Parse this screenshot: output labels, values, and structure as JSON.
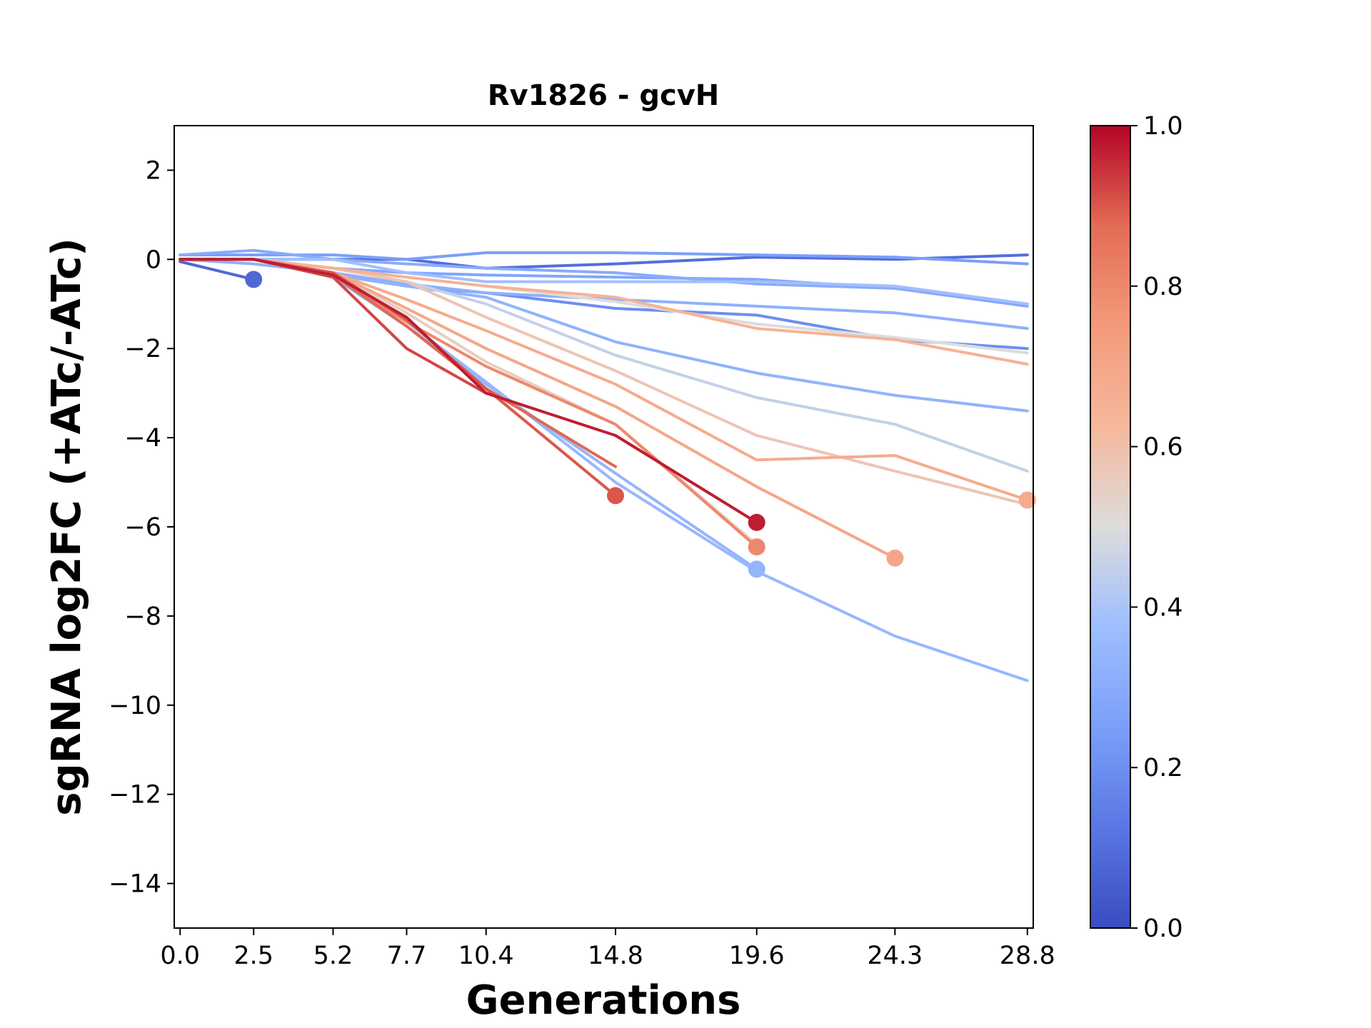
{
  "chart_data": {
    "type": "line",
    "title": "Rv1826 - gcvH",
    "xlabel": "Generations",
    "ylabel": "sgRNA log2FC (+ATc/-ATc)",
    "xlim": [
      -0.2,
      29.0
    ],
    "ylim": [
      -15,
      3
    ],
    "xticks": [
      0.0,
      2.5,
      5.2,
      7.7,
      10.4,
      14.8,
      19.6,
      24.3,
      28.8
    ],
    "xtick_labels": [
      "0.0",
      "2.5",
      "5.2",
      "7.7",
      "10.4",
      "14.8",
      "19.6",
      "24.3",
      "28.8"
    ],
    "yticks": [
      2,
      0,
      -2,
      -4,
      -6,
      -8,
      -10,
      -12,
      -14
    ],
    "ytick_labels": [
      "2",
      "0",
      "−2",
      "−4",
      "−6",
      "−8",
      "−10",
      "−12",
      "−14"
    ],
    "grid": false,
    "colorbar": {
      "colormap": "coolwarm",
      "range": [
        0.0,
        1.0
      ],
      "ticks": [
        0.0,
        0.2,
        0.4,
        0.6,
        0.8,
        1.0
      ],
      "tick_labels": [
        "0.0",
        "0.2",
        "0.4",
        "0.6",
        "0.8",
        "1.0"
      ]
    },
    "series": [
      {
        "color_value": 0.08,
        "x": [
          0.0,
          2.5
        ],
        "y": [
          -0.05,
          -0.45
        ],
        "end_marker": true
      },
      {
        "color_value": 0.1,
        "x": [
          0.0,
          2.5,
          5.2,
          7.7,
          10.4,
          14.8,
          19.6,
          24.3,
          28.8
        ],
        "y": [
          0.0,
          0.0,
          0.0,
          0.0,
          -0.2,
          -0.1,
          0.05,
          0.0,
          0.1
        ],
        "end_marker": false
      },
      {
        "color_value": 0.2,
        "x": [
          0.0,
          2.5,
          5.2,
          7.7,
          10.4,
          14.8,
          19.6,
          24.3,
          28.8
        ],
        "y": [
          0.0,
          0.0,
          -0.3,
          -0.6,
          -0.75,
          -1.1,
          -1.25,
          -1.8,
          -2.0
        ],
        "end_marker": false
      },
      {
        "color_value": 0.25,
        "x": [
          0.0,
          2.5,
          5.2,
          7.7,
          10.4,
          14.8,
          19.6,
          24.3,
          28.8
        ],
        "y": [
          0.1,
          0.1,
          0.1,
          0.0,
          0.15,
          0.15,
          0.1,
          0.05,
          -0.1
        ],
        "end_marker": false
      },
      {
        "color_value": 0.28,
        "x": [
          0.0,
          2.5,
          5.2,
          7.7,
          10.4,
          14.8,
          19.6,
          24.3,
          28.8
        ],
        "y": [
          0.0,
          0.0,
          -0.2,
          -0.3,
          -0.35,
          -0.4,
          -0.45,
          -0.65,
          -1.05
        ],
        "end_marker": false
      },
      {
        "color_value": 0.3,
        "x": [
          0.0,
          2.5,
          5.2,
          7.7,
          10.4,
          14.8,
          19.6,
          24.3,
          28.8
        ],
        "y": [
          0.1,
          0.2,
          0.0,
          -0.1,
          -0.2,
          -0.3,
          -0.55,
          -0.65,
          -1.0
        ],
        "end_marker": false
      },
      {
        "color_value": 0.32,
        "x": [
          0.0,
          2.5,
          5.2,
          7.7,
          10.4,
          14.8,
          19.6,
          24.3,
          28.8
        ],
        "y": [
          0.0,
          -0.1,
          -0.3,
          -0.55,
          -0.75,
          -0.9,
          -1.05,
          -1.2,
          -1.55
        ],
        "end_marker": false
      },
      {
        "color_value": 0.33,
        "x": [
          0.0,
          2.5,
          5.2,
          7.7,
          10.4,
          14.8,
          19.6,
          24.3,
          28.8
        ],
        "y": [
          0.0,
          0.0,
          -0.35,
          -0.6,
          -0.85,
          -1.85,
          -2.55,
          -3.05,
          -3.4
        ],
        "end_marker": false
      },
      {
        "color_value": 0.34,
        "x": [
          0.0,
          2.5,
          5.2,
          7.7,
          10.4,
          14.8,
          19.6
        ],
        "y": [
          0.0,
          0.0,
          -0.4,
          -1.5,
          -2.8,
          -4.8,
          -6.95
        ],
        "end_marker": true
      },
      {
        "color_value": 0.35,
        "x": [
          0.0,
          2.5,
          5.2,
          7.7,
          10.4,
          14.8,
          19.6,
          24.3,
          28.8
        ],
        "y": [
          0.0,
          0.0,
          -0.35,
          -1.4,
          -2.75,
          -5.0,
          -7.0,
          -8.45,
          -9.45
        ],
        "end_marker": false
      },
      {
        "color_value": 0.38,
        "x": [
          0.0,
          2.5,
          5.2,
          7.7,
          10.4,
          14.8,
          19.6,
          24.3,
          28.8
        ],
        "y": [
          0.0,
          0.0,
          0.0,
          -0.3,
          -0.5,
          -0.5,
          -0.5,
          -0.6,
          -1.0
        ],
        "end_marker": false
      },
      {
        "color_value": 0.45,
        "x": [
          0.0,
          2.5,
          5.2,
          7.7,
          10.4,
          14.8,
          19.6,
          24.3,
          28.8
        ],
        "y": [
          0.0,
          0.0,
          -0.2,
          -0.5,
          -1.0,
          -2.15,
          -3.1,
          -3.7,
          -4.75
        ],
        "end_marker": false
      },
      {
        "color_value": 0.5,
        "x": [
          0.0,
          2.5,
          5.2,
          7.7,
          10.4,
          14.8,
          19.6,
          24.3,
          28.8
        ],
        "y": [
          0.0,
          0.0,
          -0.2,
          -0.4,
          -0.6,
          -0.95,
          -1.45,
          -1.75,
          -2.1
        ],
        "end_marker": false
      },
      {
        "color_value": 0.55,
        "x": [
          0.0,
          2.5,
          5.2,
          7.7,
          10.4,
          14.8,
          19.6
        ],
        "y": [
          0.0,
          0.0,
          -0.3,
          -1.2,
          -2.3,
          -3.7,
          -6.4
        ],
        "end_marker": false
      },
      {
        "color_value": 0.58,
        "x": [
          0.0,
          2.5,
          5.2,
          7.7,
          10.4,
          14.8,
          19.6,
          24.3,
          28.8
        ],
        "y": [
          0.0,
          0.0,
          -0.2,
          -0.5,
          -1.3,
          -2.5,
          -3.95,
          -4.75,
          -5.5
        ],
        "end_marker": false
      },
      {
        "color_value": 0.65,
        "x": [
          0.0,
          2.5,
          5.2,
          7.7,
          10.4,
          14.8,
          19.6,
          24.3,
          28.8
        ],
        "y": [
          0.0,
          0.0,
          -0.2,
          -0.4,
          -0.6,
          -0.85,
          -1.55,
          -1.8,
          -2.35
        ],
        "end_marker": false
      },
      {
        "color_value": 0.68,
        "x": [
          0.0,
          2.5,
          5.2,
          7.7,
          10.4,
          14.8,
          19.6,
          24.3,
          28.8
        ],
        "y": [
          0.0,
          0.0,
          -0.3,
          -0.9,
          -1.6,
          -2.8,
          -4.5,
          -4.4,
          -5.4
        ],
        "end_marker": true
      },
      {
        "color_value": 0.7,
        "x": [
          0.0,
          2.5,
          5.2,
          7.7,
          10.4,
          14.8,
          19.6,
          24.3
        ],
        "y": [
          0.0,
          0.0,
          -0.3,
          -1.1,
          -2.0,
          -3.3,
          -5.1,
          -6.7
        ],
        "end_marker": true
      },
      {
        "color_value": 0.8,
        "x": [
          0.0,
          2.5,
          5.2,
          7.7,
          10.4,
          14.8,
          19.6
        ],
        "y": [
          0.0,
          0.0,
          -0.35,
          -1.4,
          -2.4,
          -3.7,
          -6.45
        ],
        "end_marker": true
      },
      {
        "color_value": 0.88,
        "x": [
          0.0,
          2.5,
          5.2,
          7.7,
          10.4,
          14.8
        ],
        "y": [
          0.0,
          0.0,
          -0.35,
          -1.5,
          -2.9,
          -4.65
        ],
        "end_marker": false
      },
      {
        "color_value": 0.9,
        "x": [
          0.0,
          2.5,
          5.2,
          7.7,
          10.4,
          14.8
        ],
        "y": [
          0.0,
          0.0,
          -0.3,
          -1.35,
          -2.9,
          -5.3
        ],
        "end_marker": true
      },
      {
        "color_value": 0.92,
        "x": [
          0.0,
          2.5,
          5.2,
          7.7,
          10.4
        ],
        "y": [
          0.0,
          0.0,
          -0.4,
          -2.0,
          -3.0
        ],
        "end_marker": false
      },
      {
        "color_value": 0.97,
        "x": [
          0.0,
          2.5,
          5.2,
          7.7,
          10.4,
          14.8,
          19.6
        ],
        "y": [
          0.0,
          0.0,
          -0.35,
          -1.3,
          -3.0,
          -3.95,
          -5.9
        ],
        "end_marker": true
      }
    ]
  }
}
